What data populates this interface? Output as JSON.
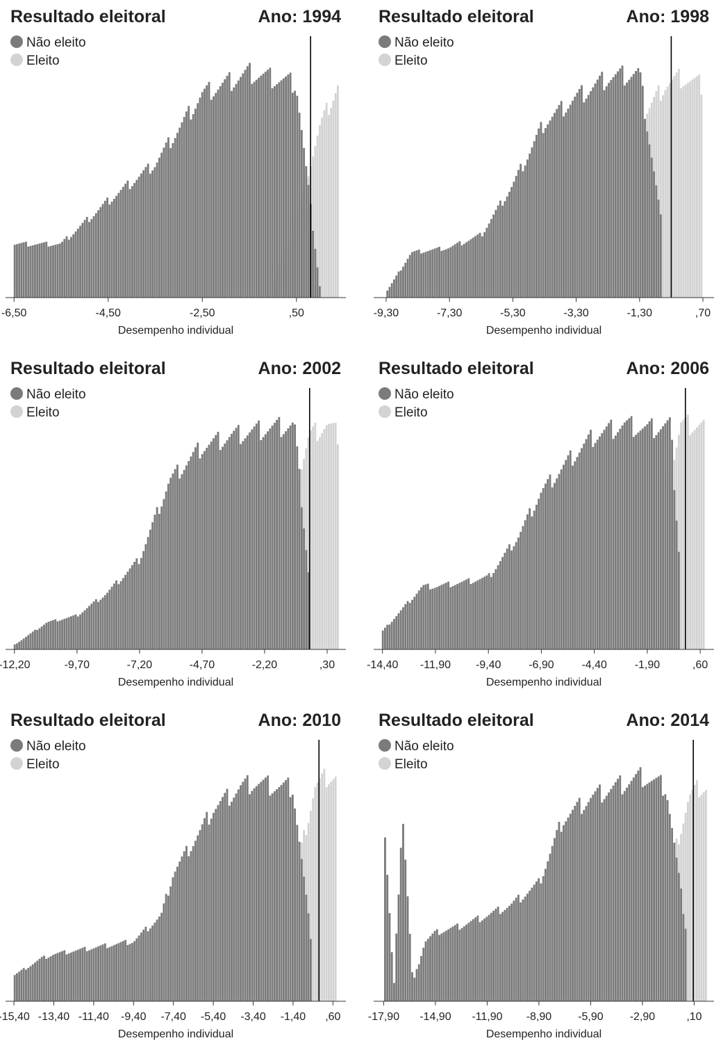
{
  "legend_title": "Resultado eleitoral",
  "xlabel": "Desempenho individual",
  "colors": {
    "nao_eleito": "#7b7b7b",
    "eleito": "#d3d3d3",
    "cutoff": "#000000",
    "axis": "#333333"
  },
  "chart_data": [
    {
      "type": "histogram",
      "title": "Resultado eleitoral",
      "year_label": "Ano: 1994",
      "legend": [
        {
          "name": "Não eleito",
          "color": "#7b7b7b"
        },
        {
          "name": "Eleito",
          "color": "#d3d3d3"
        }
      ],
      "xlabel": "Desempenho individual",
      "xlim": [
        -6.65,
        0.55
      ],
      "x_ticks": [
        -6.5,
        -4.5,
        -2.5,
        -0.5
      ],
      "x_tick_labels": [
        "-6,50",
        "-4,50",
        "-2,50",
        ",50"
      ],
      "cutoff": -0.2,
      "series": [
        {
          "name": "Não eleito",
          "x": [
            -6.5,
            -5.5,
            -4.5,
            -3.5,
            -2.5,
            -1.5,
            -0.5,
            0.0
          ],
          "values": [
            10,
            10,
            18,
            25,
            38,
            42,
            40,
            2
          ]
        },
        {
          "name": "Eleito",
          "x": [
            -1.0,
            -0.5,
            0.0,
            0.4
          ],
          "values": [
            2,
            15,
            32,
            40
          ]
        }
      ]
    },
    {
      "type": "histogram",
      "title": "Resultado eleitoral",
      "year_label": "Ano: 1998",
      "legend": [
        {
          "name": "Não eleito",
          "color": "#7b7b7b"
        },
        {
          "name": "Eleito",
          "color": "#d3d3d3"
        }
      ],
      "xlabel": "Desempenho individual",
      "xlim": [
        -9.65,
        1.05
      ],
      "x_ticks": [
        -9.3,
        -7.3,
        -5.3,
        -3.3,
        -1.3,
        0.7
      ],
      "x_tick_labels": [
        "-9,30",
        "-7,30",
        "-5,30",
        "-3,30",
        "-1,30",
        ",70"
      ],
      "cutoff": -0.3,
      "series": [
        {
          "name": "Não eleito",
          "x": [
            -9.3,
            -8.5,
            -7.3,
            -6.3,
            -5.3,
            -4.3,
            -3.3,
            -2.3,
            -1.3,
            -0.6
          ],
          "values": [
            2,
            18,
            20,
            25,
            45,
            70,
            80,
            88,
            90,
            30
          ]
        },
        {
          "name": "Eleito",
          "x": [
            -1.3,
            -0.5,
            0.0,
            0.7
          ],
          "values": [
            70,
            85,
            88,
            85
          ]
        }
      ]
    },
    {
      "type": "histogram",
      "title": "Resultado eleitoral",
      "year_label": "Ano: 2002",
      "legend": [
        {
          "name": "Não eleito",
          "color": "#7b7b7b"
        },
        {
          "name": "Eleito",
          "color": "#d3d3d3"
        }
      ],
      "xlabel": "Desempenho individual",
      "xlim": [
        -12.5,
        1.05
      ],
      "x_ticks": [
        -12.2,
        -9.7,
        -7.2,
        -4.7,
        -2.2,
        0.3
      ],
      "x_tick_labels": [
        "-12,20",
        "-9,70",
        "-7,20",
        "-4,70",
        "-2,20",
        ",30"
      ],
      "cutoff": -0.4,
      "series": [
        {
          "name": "Não eleito",
          "x": [
            -12.2,
            -10.9,
            -9.7,
            -8.5,
            -7.2,
            -6.0,
            -4.7,
            -3.5,
            -2.2,
            -1.0,
            -0.4
          ],
          "values": [
            2,
            12,
            15,
            25,
            40,
            75,
            90,
            95,
            98,
            100,
            30
          ]
        },
        {
          "name": "Eleito",
          "x": [
            -1.0,
            -0.4,
            0.3,
            0.8
          ],
          "values": [
            70,
            95,
            100,
            95
          ]
        }
      ]
    },
    {
      "type": "histogram",
      "title": "Resultado eleitoral",
      "year_label": "Ano: 2006",
      "legend": [
        {
          "name": "Não eleito",
          "color": "#7b7b7b"
        },
        {
          "name": "Eleito",
          "color": "#d3d3d3"
        }
      ],
      "xlabel": "Desempenho individual",
      "xlim": [
        -14.75,
        1.25
      ],
      "x_ticks": [
        -14.4,
        -11.9,
        -9.4,
        -6.9,
        -4.4,
        -1.9,
        0.6
      ],
      "x_tick_labels": [
        "-14,40",
        "-11,90",
        "-9,40",
        "-6,90",
        "-4,40",
        "-1,90",
        ",60"
      ],
      "cutoff": -0.1,
      "series": [
        {
          "name": "Não eleito",
          "x": [
            -14.4,
            -12.5,
            -11.9,
            -10.5,
            -9.4,
            -8.0,
            -6.9,
            -5.5,
            -4.4,
            -3.0,
            -1.9,
            -0.8,
            -0.3
          ],
          "values": [
            8,
            28,
            28,
            30,
            32,
            50,
            70,
            85,
            95,
            100,
            98,
            100,
            30
          ]
        },
        {
          "name": "Eleito",
          "x": [
            -1.0,
            -0.3,
            0.3,
            0.8
          ],
          "values": [
            70,
            100,
            100,
            100
          ]
        }
      ]
    },
    {
      "type": "histogram",
      "title": "Resultado eleitoral",
      "year_label": "Ano: 2010",
      "legend": [
        {
          "name": "Não eleito",
          "color": "#7b7b7b"
        },
        {
          "name": "Eleito",
          "color": "#d3d3d3"
        }
      ],
      "xlabel": "Desempenho individual",
      "xlim": [
        -15.75,
        1.25
      ],
      "x_ticks": [
        -15.4,
        -13.4,
        -11.4,
        -9.4,
        -7.4,
        -5.4,
        -3.4,
        -1.4,
        0.6
      ],
      "x_tick_labels": [
        "-15,40",
        "-13,40",
        "-11,40",
        "-9,40",
        "-7,40",
        "-5,40",
        "-3,40",
        "-1,40",
        ",60"
      ],
      "cutoff": -0.1,
      "series": [
        {
          "name": "Não eleito",
          "x": [
            -15.4,
            -14.0,
            -13.4,
            -11.4,
            -9.4,
            -8.0,
            -7.4,
            -6.0,
            -5.4,
            -4.0,
            -3.4,
            -2.0,
            -1.4,
            -0.5
          ],
          "values": [
            12,
            20,
            22,
            25,
            28,
            40,
            60,
            80,
            90,
            100,
            102,
            100,
            100,
            30
          ]
        },
        {
          "name": "Eleito",
          "x": [
            -1.0,
            -0.3,
            0.3,
            0.8
          ],
          "values": [
            70,
            100,
            105,
            105
          ]
        }
      ]
    },
    {
      "type": "histogram",
      "title": "Resultado eleitoral",
      "year_label": "Ano: 2014",
      "legend": [
        {
          "name": "Não eleito",
          "color": "#7b7b7b"
        },
        {
          "name": "Eleito",
          "color": "#d3d3d3"
        }
      ],
      "xlabel": "Desempenho individual",
      "xlim": [
        -18.4,
        1.25
      ],
      "x_ticks": [
        -17.9,
        -14.9,
        -11.9,
        -8.9,
        -5.9,
        -2.9,
        0.1
      ],
      "x_tick_labels": [
        "-17,90",
        "-14,90",
        "-11,90",
        "-8,90",
        "-5,90",
        "-2,90",
        ",10"
      ],
      "cutoff": 0.05,
      "series": [
        {
          "name": "Não eleito",
          "x": [
            -17.9,
            -17.3,
            -16.8,
            -16.2,
            -15.5,
            -14.9,
            -13.5,
            -11.9,
            -10.5,
            -8.9,
            -7.5,
            -5.9,
            -4.5,
            -2.9,
            -1.5,
            -0.3
          ],
          "values": [
            90,
            6,
            90,
            8,
            28,
            32,
            35,
            40,
            45,
            55,
            85,
            95,
            100,
            105,
            100,
            30
          ]
        },
        {
          "name": "Eleito",
          "x": [
            -1.0,
            -0.2,
            0.4,
            0.8
          ],
          "values": [
            70,
            95,
            100,
            100
          ]
        }
      ]
    }
  ]
}
